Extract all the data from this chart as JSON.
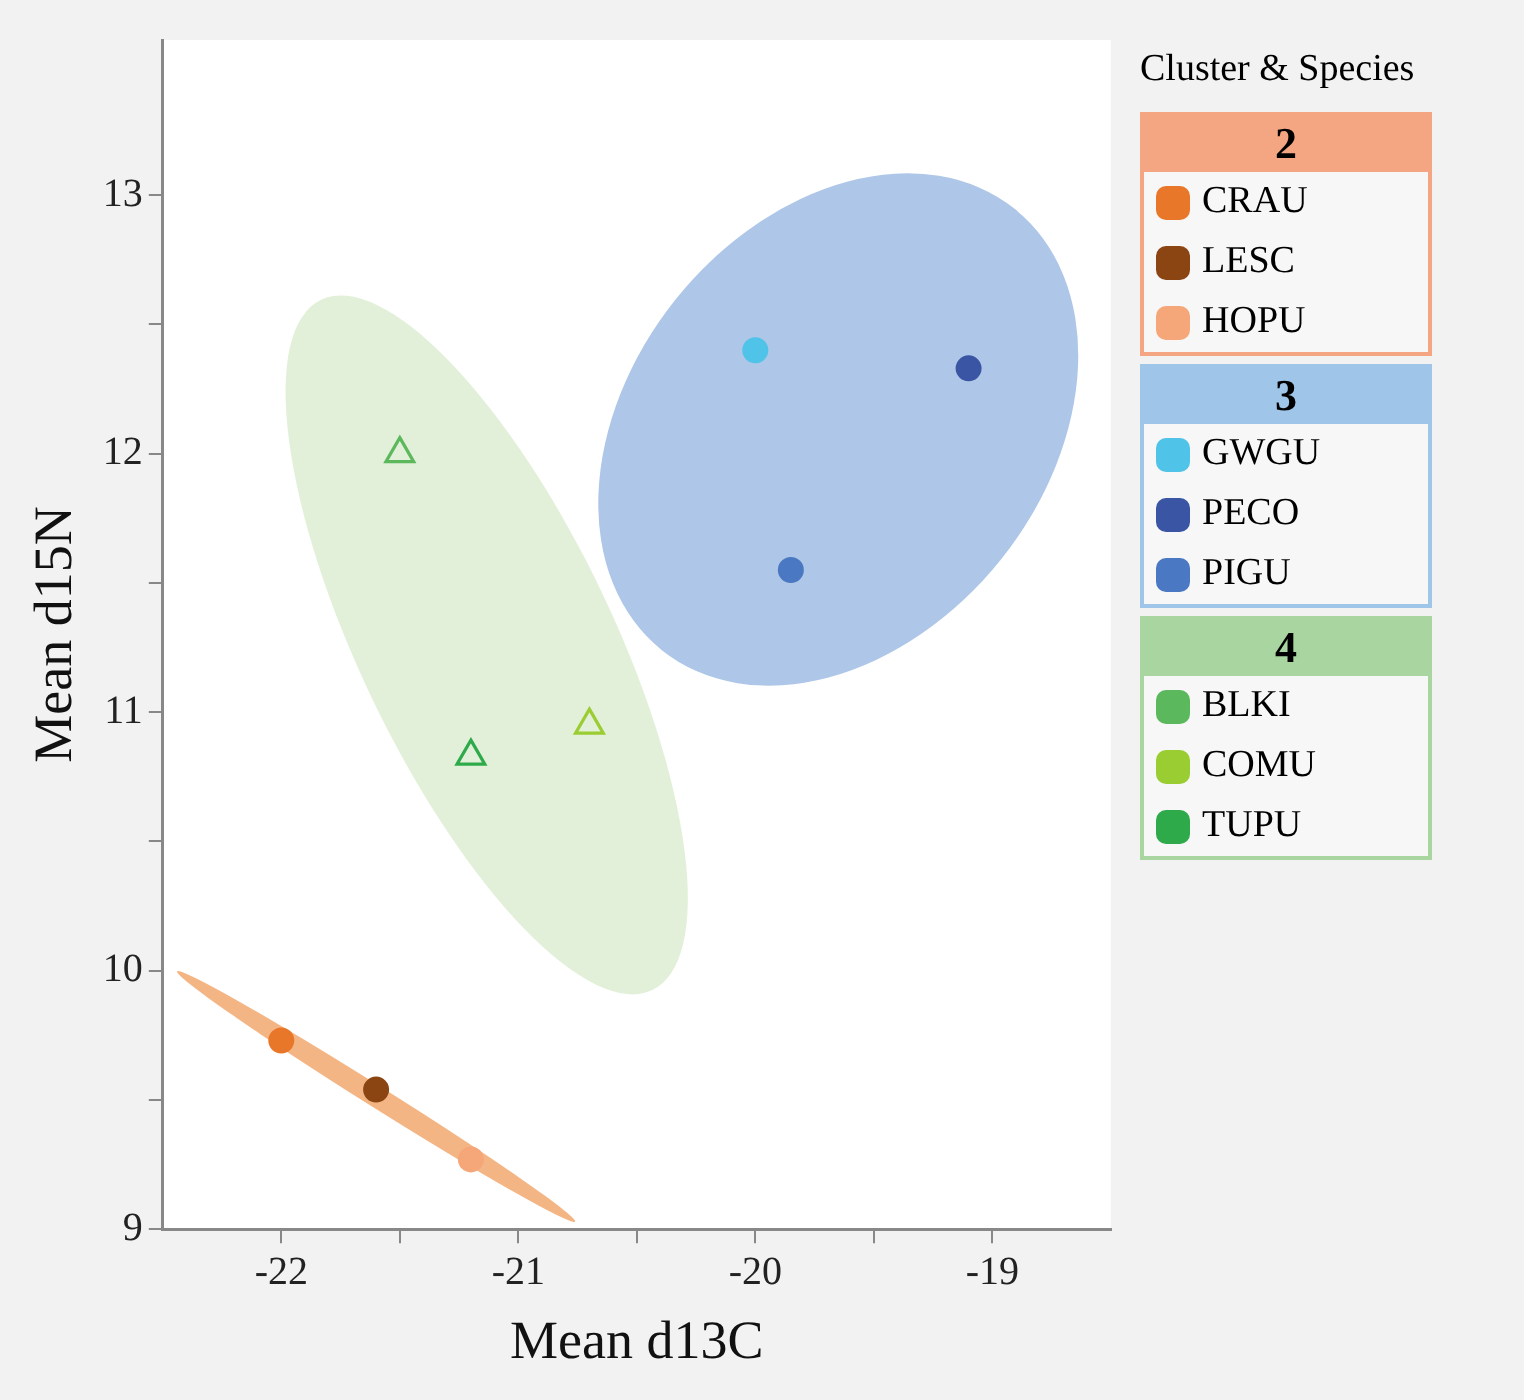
{
  "chart_data": {
    "type": "scatter",
    "xlabel": "Mean d13C",
    "ylabel": "Mean d15N",
    "legend_title": "Cluster & Species",
    "annotations": [
      "2",
      "3",
      "4"
    ],
    "legend": "right",
    "grid": false,
    "xlim": [
      -22.5,
      -18.5
    ],
    "xticks": [
      -22,
      {
        "value": -21.5,
        "label": null
      },
      -21,
      {
        "value": -20.5,
        "label": null
      },
      -20,
      {
        "value": -19.5,
        "label": null
      },
      -19
    ],
    "ylim": [
      9,
      13.6
    ],
    "yticks": [
      9,
      {
        "value": 9.5,
        "label": null
      },
      10,
      {
        "value": 10.5,
        "label": null
      },
      11,
      {
        "value": 11.5,
        "label": null
      },
      12,
      {
        "value": 12.5,
        "label": null
      },
      13
    ],
    "series": [
      {
        "name": "CRAU",
        "color": "#e8772a",
        "marker": "circle",
        "x": [
          -22.0
        ],
        "values": [
          9.73
        ]
      },
      {
        "name": "LESC",
        "color": "#8b4513",
        "marker": "circle",
        "x": [
          -21.6
        ],
        "values": [
          9.54
        ]
      },
      {
        "name": "HOPU",
        "color": "#f5a77a",
        "marker": "circle",
        "x": [
          -21.2
        ],
        "values": [
          9.27
        ]
      },
      {
        "name": "GWGU",
        "color": "#4fc3e8",
        "marker": "circle",
        "x": [
          -20.0
        ],
        "values": [
          12.4
        ]
      },
      {
        "name": "PECO",
        "color": "#3a55a4",
        "marker": "circle",
        "x": [
          -19.1
        ],
        "values": [
          12.33
        ]
      },
      {
        "name": "PIGU",
        "color": "#4a78c2",
        "marker": "circle",
        "x": [
          -19.85
        ],
        "values": [
          11.55
        ]
      },
      {
        "name": "BLKI",
        "color": "#5cb85c",
        "marker": "triangle",
        "x": [
          -21.5
        ],
        "values": [
          12.0
        ]
      },
      {
        "name": "COMU",
        "color": "#9acd32",
        "marker": "triangle",
        "x": [
          -20.7
        ],
        "values": [
          10.95
        ]
      },
      {
        "name": "TUPU",
        "color": "#2eaa4a",
        "marker": "triangle",
        "x": [
          -21.2
        ],
        "values": [
          10.83
        ]
      }
    ]
  }
}
